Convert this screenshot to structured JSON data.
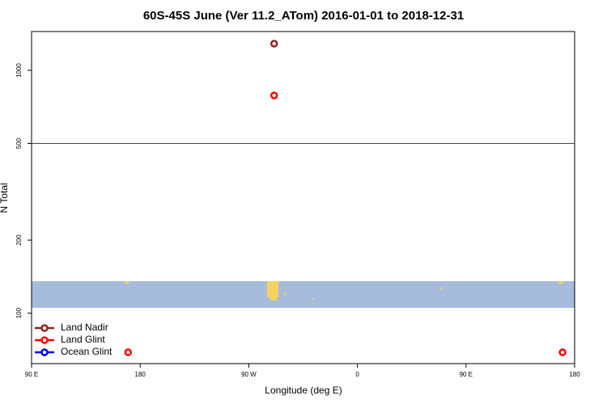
{
  "chart_data": {
    "type": "scatter",
    "title": "60S-45S June (Ver 11.2_ATom)   2016-01-01 to 2018-12-31",
    "x_label": "Longitude (deg E)",
    "y_label": "N Total",
    "xlim": [
      90,
      540
    ],
    "xticks": [
      {
        "value": 90,
        "label": "90 E"
      },
      180,
      {
        "value": 270,
        "label": "90 W"
      },
      {
        "value": 360,
        "label": "0"
      },
      {
        "value": 450,
        "label": "90 E"
      },
      {
        "value": 540,
        "label": "180"
      }
    ],
    "ylim": [
      62,
      1445
    ],
    "yticks": [
      100,
      200,
      500,
      1000
    ],
    "log_y": true,
    "grid": false,
    "reference_line": 500,
    "legend": "bottomleft",
    "series": [
      {
        "name": "Land Nadir",
        "color": "#8b2323",
        "x": [
          291
        ],
        "values": [
          1288
        ]
      },
      {
        "name": "Land Glint",
        "color": "#ff0000",
        "x": [
          291,
          170,
          530
        ],
        "values": [
          788,
          69,
          69
        ]
      },
      {
        "name": "Ocean Glint",
        "color": "#0000ff",
        "x": [],
        "values": []
      }
    ]
  }
}
